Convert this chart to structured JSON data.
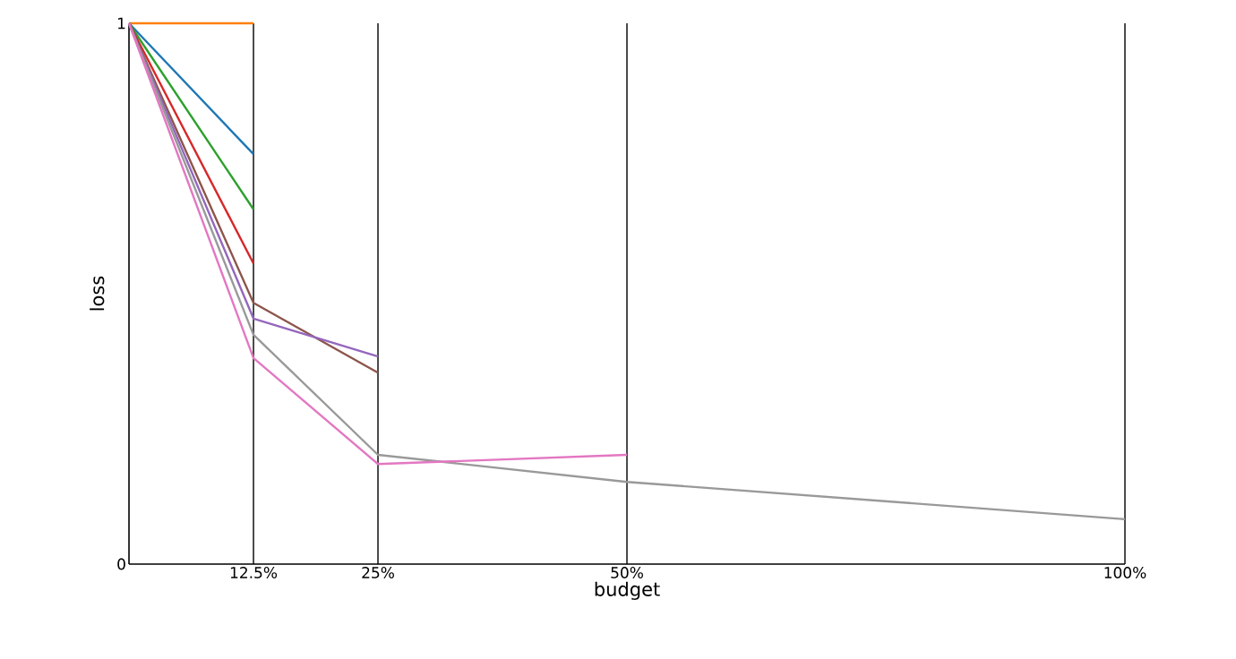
{
  "chart_data": {
    "type": "line",
    "xlabel": "budget",
    "ylabel": "loss",
    "xlim": [
      0,
      100
    ],
    "ylim": [
      0,
      1
    ],
    "xticks": [
      {
        "value": 12.5,
        "label": "12.5%"
      },
      {
        "value": 25,
        "label": "25%"
      },
      {
        "value": 50,
        "label": "50%"
      },
      {
        "value": 100,
        "label": "100%"
      }
    ],
    "yticks": [
      0,
      1
    ],
    "grid": "x",
    "marker": "none",
    "line_style": "solid",
    "series": [
      {
        "color": "#ff7f0e",
        "x": [
          0,
          12.5
        ],
        "values": [
          1,
          1
        ]
      },
      {
        "color": "#1f77b4",
        "x": [
          0,
          12.5
        ],
        "values": [
          1,
          0.758
        ]
      },
      {
        "color": "#2ca02c",
        "x": [
          0,
          12.5
        ],
        "values": [
          1,
          0.656
        ]
      },
      {
        "color": "#d62728",
        "x": [
          0,
          12.5
        ],
        "values": [
          1,
          0.556
        ]
      },
      {
        "color": "#8c564b",
        "x": [
          0,
          12.5,
          25
        ],
        "values": [
          1,
          0.483,
          0.354
        ]
      },
      {
        "color": "#9467bd",
        "x": [
          0,
          12.5,
          25
        ],
        "values": [
          1,
          0.454,
          0.384
        ]
      },
      {
        "color": "#999999",
        "x": [
          0,
          12.5,
          25,
          50,
          100
        ],
        "values": [
          1,
          0.424,
          0.202,
          0.152,
          0.083
        ]
      },
      {
        "color": "#e377c2",
        "x": [
          0,
          12.5,
          25,
          50
        ],
        "values": [
          1,
          0.381,
          0.185,
          0.202
        ]
      }
    ]
  }
}
